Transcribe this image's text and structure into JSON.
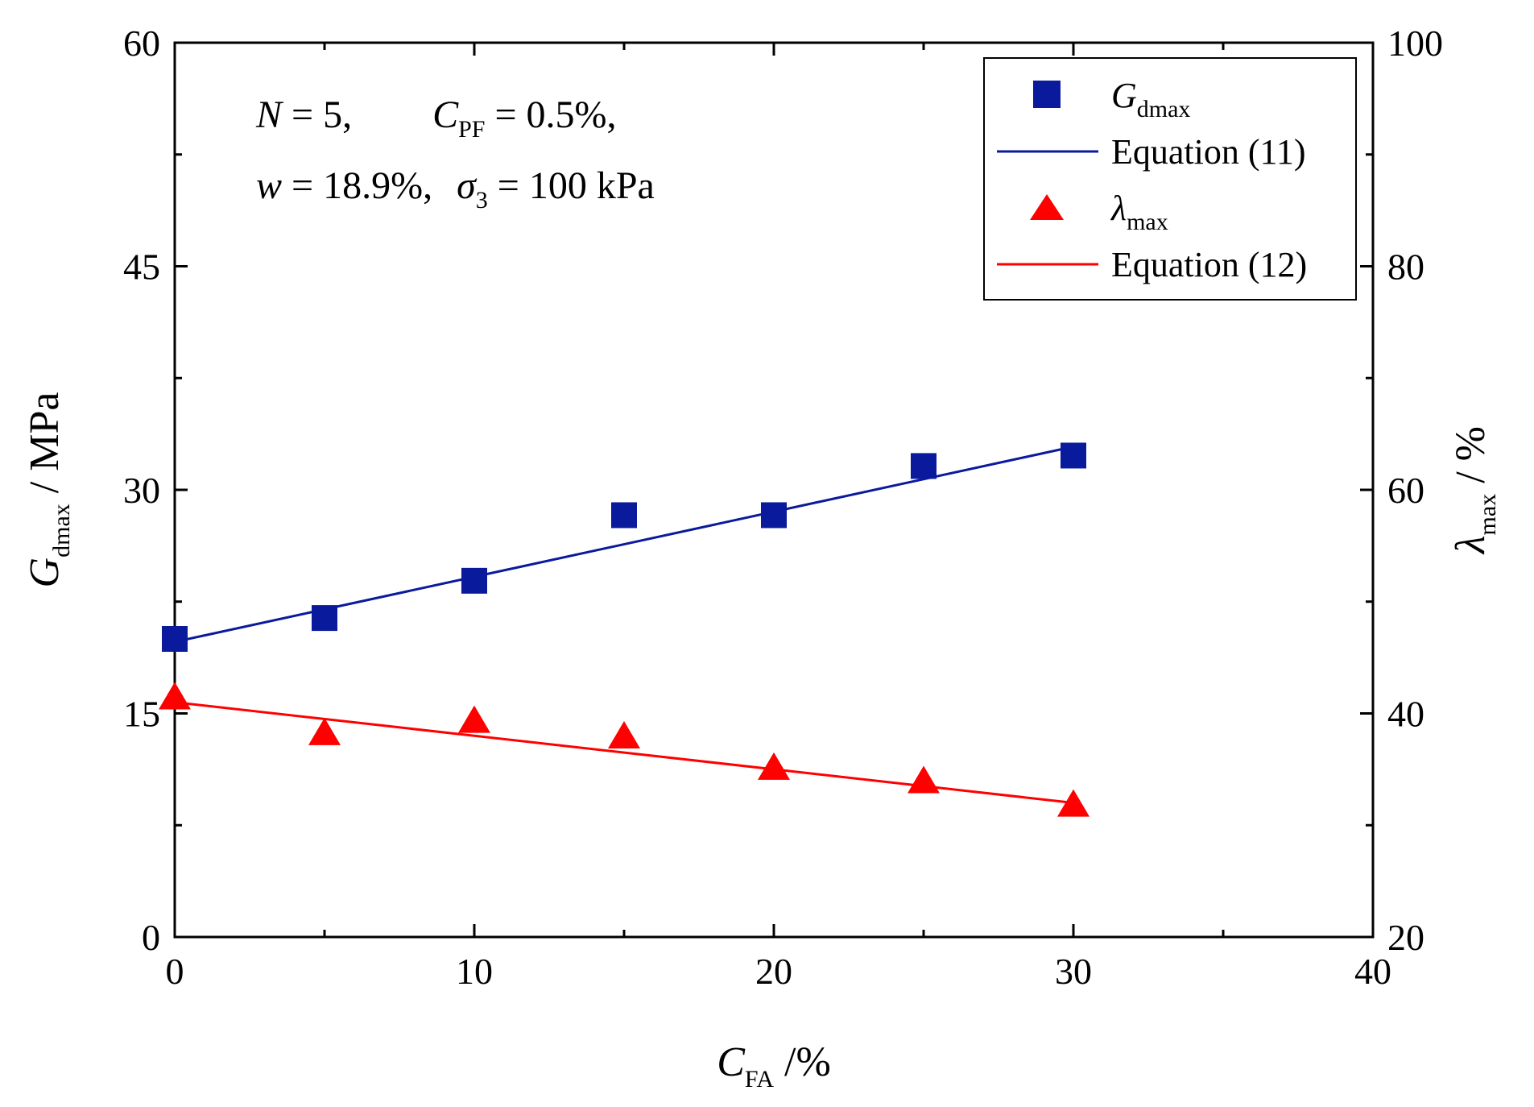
{
  "chart_data": {
    "type": "scatter",
    "title": "",
    "x": [
      0,
      5,
      10,
      15,
      20,
      25,
      30
    ],
    "xlim": [
      0,
      40
    ],
    "xticks": [
      0,
      10,
      20,
      30,
      40
    ],
    "xlabel": {
      "main": "C",
      "sub": "FA",
      "suffix": " /%"
    },
    "ylim_left": [
      0,
      60
    ],
    "yticks_left": [
      0,
      15,
      30,
      45,
      60
    ],
    "ylabel_left": {
      "main": "G",
      "sub": "dmax",
      "suffix": " / MPa"
    },
    "ylim_right": [
      20,
      100
    ],
    "yticks_right": [
      20,
      40,
      60,
      80,
      100
    ],
    "ylabel_right": {
      "main": "λ",
      "sub": "max",
      "suffix": " / %"
    },
    "series": [
      {
        "name": "Gdmax",
        "legend_main": "G",
        "legend_sub": "dmax",
        "axis": "left",
        "marker": "square",
        "color": "#0a1a9c",
        "values": [
          20.0,
          21.4,
          23.9,
          28.3,
          28.3,
          31.6,
          32.3
        ]
      },
      {
        "name": "Equation (11)",
        "legend_main": "Equation (11)",
        "axis": "left",
        "marker": "line",
        "color": "#0a1a9c",
        "x": [
          0,
          30
        ],
        "values": [
          19.8,
          32.9
        ]
      },
      {
        "name": "λmax",
        "legend_main": "λ",
        "legend_sub": "max",
        "axis": "right",
        "marker": "triangle",
        "color": "#ff0000",
        "values": [
          41.3,
          38.1,
          39.2,
          37.8,
          35.0,
          33.8,
          31.7
        ]
      },
      {
        "name": "Equation (12)",
        "legend_main": "Equation (12)",
        "axis": "right",
        "marker": "line",
        "color": "#ff0000",
        "x": [
          0,
          30
        ],
        "values": [
          41.0,
          32.0
        ]
      }
    ],
    "annotations": {
      "line1": {
        "n_var": "N",
        "n_val": " = 5,",
        "c_var": "C",
        "c_sub": "PF",
        "c_val": " = 0.5%,"
      },
      "line2": {
        "w_var": "w",
        "w_val": " = 18.9%,",
        "s_var": "σ",
        "s_sub": "3",
        "s_val": " = 100 kPa"
      }
    },
    "legend_position": "top-right",
    "grid": false
  }
}
